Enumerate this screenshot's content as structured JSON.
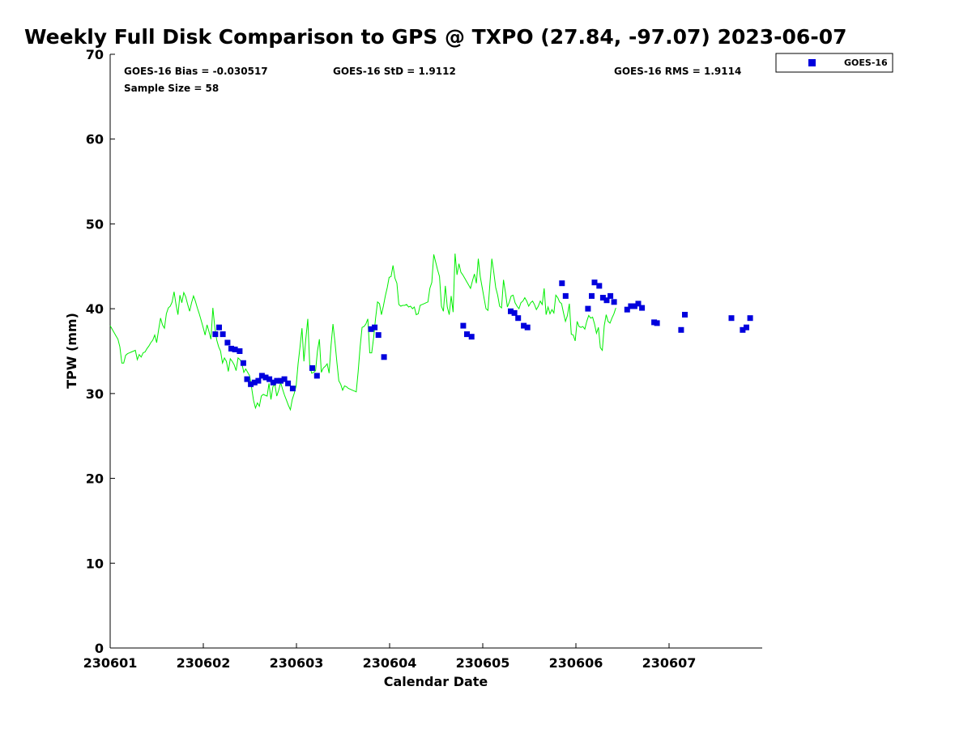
{
  "chart_data": {
    "type": "scatter",
    "title": "Weekly Full Disk Comparison to GPS @ TXPO (27.84, -97.07) 2023-06-07",
    "xlabel": "Calendar Date",
    "ylabel": "TPW (mm)",
    "ylim": [
      0,
      70
    ],
    "xlim": [
      0,
      7
    ],
    "x_tick_labels": [
      "230601",
      "230602",
      "230603",
      "230604",
      "230605",
      "230606",
      "230607"
    ],
    "y_ticks": [
      0,
      10,
      20,
      30,
      40,
      50,
      60,
      70
    ],
    "grid": false,
    "legend_position": "top-right",
    "stats": {
      "bias": "GOES-16 Bias = -0.030517",
      "std": "GOES-16 StD = 1.9112",
      "rms": "GOES-16 RMS = 1.9114",
      "sample_size": "Sample Size = 58"
    },
    "series": [
      {
        "name": "GOES-16",
        "marker": "square",
        "color": "#0000dd",
        "points": [
          [
            1.13,
            37.0
          ],
          [
            1.17,
            37.8
          ],
          [
            1.21,
            37.0
          ],
          [
            1.26,
            36.0
          ],
          [
            1.3,
            35.3
          ],
          [
            1.34,
            35.2
          ],
          [
            1.39,
            35.0
          ],
          [
            1.43,
            33.6
          ],
          [
            1.47,
            31.7
          ],
          [
            1.51,
            31.1
          ],
          [
            1.55,
            31.3
          ],
          [
            1.59,
            31.5
          ],
          [
            1.63,
            32.1
          ],
          [
            1.67,
            31.9
          ],
          [
            1.71,
            31.7
          ],
          [
            1.75,
            31.3
          ],
          [
            1.79,
            31.5
          ],
          [
            1.83,
            31.5
          ],
          [
            1.87,
            31.7
          ],
          [
            1.91,
            31.2
          ],
          [
            1.96,
            30.6
          ],
          [
            2.17,
            33.0
          ],
          [
            2.22,
            32.1
          ],
          [
            2.8,
            37.6
          ],
          [
            2.84,
            37.8
          ],
          [
            2.88,
            36.9
          ],
          [
            2.94,
            34.3
          ],
          [
            3.79,
            38.0
          ],
          [
            3.83,
            37.0
          ],
          [
            3.88,
            36.7
          ],
          [
            4.3,
            39.7
          ],
          [
            4.34,
            39.5
          ],
          [
            4.38,
            38.9
          ],
          [
            4.44,
            38.0
          ],
          [
            4.48,
            37.8
          ],
          [
            4.85,
            43.0
          ],
          [
            4.89,
            41.5
          ],
          [
            5.13,
            40.0
          ],
          [
            5.17,
            41.5
          ],
          [
            5.2,
            43.1
          ],
          [
            5.25,
            42.7
          ],
          [
            5.29,
            41.3
          ],
          [
            5.33,
            41.0
          ],
          [
            5.37,
            41.5
          ],
          [
            5.41,
            40.8
          ],
          [
            5.55,
            39.9
          ],
          [
            5.59,
            40.3
          ],
          [
            5.63,
            40.3
          ],
          [
            5.67,
            40.6
          ],
          [
            5.71,
            40.1
          ],
          [
            5.84,
            38.4
          ],
          [
            5.87,
            38.3
          ],
          [
            6.13,
            37.5
          ],
          [
            6.17,
            39.3
          ],
          [
            6.67,
            38.9
          ],
          [
            6.79,
            37.5
          ],
          [
            6.83,
            37.8
          ],
          [
            6.87,
            38.9
          ]
        ]
      },
      {
        "name": "",
        "type": "line",
        "color": "#00ee00",
        "x_step_days": 0.0208,
        "values": [
          38.0,
          37.6,
          37.2,
          36.8,
          36.4,
          35.5,
          33.6,
          33.6,
          34.5,
          34.7,
          34.8,
          34.9,
          35.0,
          35.1,
          34.0,
          34.6,
          34.3,
          34.8,
          34.9,
          35.3,
          35.6,
          36.0,
          36.3,
          36.9,
          36.0,
          37.5,
          38.9,
          38.1,
          37.7,
          39.4,
          40.1,
          40.3,
          40.8,
          42.0,
          40.5,
          39.3,
          41.6,
          40.7,
          41.9,
          41.4,
          40.5,
          39.7,
          40.7,
          41.5,
          40.9,
          40.1,
          39.4,
          38.6,
          37.8,
          36.9,
          38.1,
          37.3,
          36.4,
          40.1,
          37.8,
          36.3,
          35.5,
          35.0,
          33.6,
          34.2,
          33.8,
          32.6,
          34.1,
          33.8,
          33.4,
          32.7,
          34.2,
          34.0,
          33.5,
          32.5,
          32.9,
          32.5,
          32.1,
          30.7,
          29.2,
          28.3,
          28.9,
          28.5,
          29.7,
          29.9,
          29.8,
          29.7,
          31.2,
          29.3,
          30.8,
          31.1,
          29.7,
          30.4,
          31.3,
          30.5,
          29.8,
          29.2,
          28.6,
          28.1,
          29.3,
          30.0,
          30.9,
          33.5,
          35.5,
          37.7,
          33.8,
          36.5,
          38.8,
          33.3,
          32.4,
          32.5,
          32.7,
          35.0,
          36.4,
          32.5,
          33.0,
          33.2,
          33.5,
          32.4,
          35.7,
          38.2,
          36.1,
          33.7,
          31.5,
          31.1,
          30.4,
          30.9,
          30.8,
          30.6,
          30.5,
          30.4,
          30.3,
          30.2,
          32.6,
          35.5,
          37.8,
          37.9,
          38.2,
          38.8,
          34.8,
          34.8,
          36.6,
          38.9,
          40.8,
          40.6,
          39.3,
          40.3,
          41.5,
          42.5,
          43.7,
          43.8,
          45.1,
          43.6,
          43.0,
          40.5,
          40.3,
          40.4,
          40.4,
          40.5,
          40.2,
          40.3,
          40.0,
          40.2,
          39.3,
          39.4,
          40.4,
          40.5,
          40.6,
          40.7,
          40.8,
          42.4,
          43.1,
          46.4,
          45.5,
          44.6,
          43.8,
          40.3,
          39.7,
          42.7,
          40.2,
          39.3,
          41.5,
          39.6,
          46.5,
          44.0,
          45.3,
          44.3,
          44.0,
          43.6,
          43.2,
          42.8,
          42.4,
          43.3,
          44.1,
          43.0,
          45.9,
          43.8,
          42.5,
          41.2,
          40.0,
          39.8,
          42.9,
          45.9,
          44.3,
          42.5,
          41.6,
          40.3,
          40.1,
          43.4,
          41.9,
          40.2,
          40.8,
          41.5,
          41.6,
          40.7,
          40.3,
          40.0,
          40.7,
          40.9,
          41.3,
          40.9,
          40.3,
          40.7,
          40.9,
          40.5,
          39.9,
          40.3,
          40.9,
          40.5,
          42.4,
          39.3,
          40.2,
          39.4,
          39.9,
          39.5,
          41.6,
          41.3,
          40.8,
          40.6,
          39.5,
          38.5,
          39.2,
          40.6,
          37.0,
          36.9,
          36.2,
          38.5,
          37.9,
          37.8,
          37.9,
          37.6,
          38.5,
          39.2,
          38.9,
          39.0,
          38.2,
          37.1,
          37.8,
          35.4,
          35.1,
          38.0,
          39.3,
          38.5,
          38.3,
          38.9,
          39.4,
          40.1
        ]
      }
    ]
  }
}
